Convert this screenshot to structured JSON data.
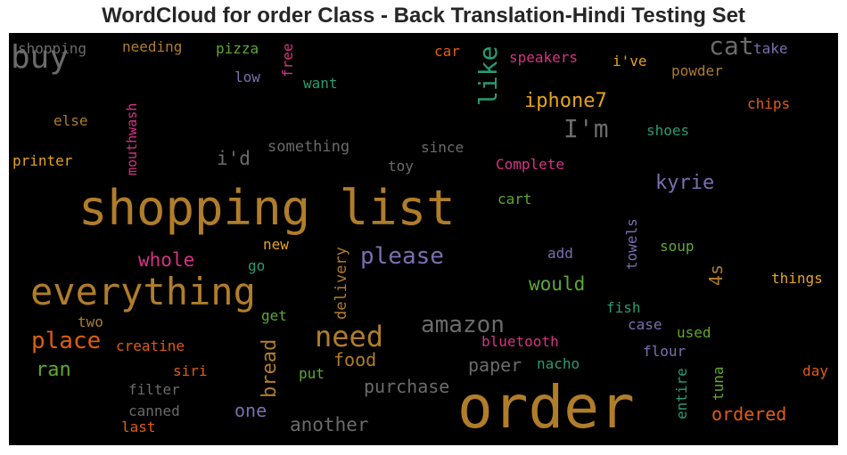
{
  "title": "WordCloud for order Class - Back Translation-Hindi Testing Set",
  "chart_data": {
    "type": "wordcloud",
    "background": "#000000",
    "palette": [
      "#b07d2a",
      "#6b6b6b",
      "#e05d10",
      "#d63384",
      "#5fa832",
      "#7b6fb0",
      "#2a9c72",
      "#e6a51a"
    ],
    "words": [
      {
        "text": "order",
        "color": "#b07d2a",
        "weight": 1.0
      },
      {
        "text": "shopping list",
        "color": "#b07d2a",
        "weight": 0.86
      },
      {
        "text": "everything",
        "color": "#b07d2a",
        "weight": 0.74
      },
      {
        "text": "buy",
        "color": "#6b6b6b",
        "weight": 0.6
      },
      {
        "text": "need",
        "color": "#b07d2a",
        "weight": 0.55
      },
      {
        "text": "place",
        "color": "#e05d10",
        "weight": 0.48
      },
      {
        "text": "like",
        "color": "#2a9c72",
        "weight": 0.46
      },
      {
        "text": "I'm",
        "color": "#6b6b6b",
        "weight": 0.44
      },
      {
        "text": "cat",
        "color": "#6b6b6b",
        "weight": 0.44
      },
      {
        "text": "amazon",
        "color": "#6b6b6b",
        "weight": 0.42
      },
      {
        "text": "please",
        "color": "#7b6fb0",
        "weight": 0.42
      },
      {
        "text": "iphone7",
        "color": "#e6a51a",
        "weight": 0.38
      },
      {
        "text": "ran",
        "color": "#5fa832",
        "weight": 0.36
      },
      {
        "text": "bread",
        "color": "#b07d2a",
        "weight": 0.36
      },
      {
        "text": "food",
        "color": "#b07d2a",
        "weight": 0.34
      },
      {
        "text": "kyrie",
        "color": "#7b6fb0",
        "weight": 0.32
      },
      {
        "text": "whole",
        "color": "#d63384",
        "weight": 0.32
      },
      {
        "text": "would",
        "color": "#5fa832",
        "weight": 0.32
      },
      {
        "text": "purchase",
        "color": "#6b6b6b",
        "weight": 0.32
      },
      {
        "text": "paper",
        "color": "#6b6b6b",
        "weight": 0.32
      },
      {
        "text": "another",
        "color": "#6b6b6b",
        "weight": 0.32
      },
      {
        "text": "4s",
        "color": "#b07d2a",
        "weight": 0.32
      },
      {
        "text": "ordered",
        "color": "#e05d10",
        "weight": 0.3
      },
      {
        "text": "i'd",
        "color": "#6b6b6b",
        "weight": 0.3
      },
      {
        "text": "one",
        "color": "#7b6fb0",
        "weight": 0.3
      },
      {
        "text": "delivery",
        "color": "#b07d2a",
        "weight": 0.26
      },
      {
        "text": "something",
        "color": "#6b6b6b",
        "weight": 0.26
      },
      {
        "text": "shopping",
        "color": "#6b6b6b",
        "weight": 0.24
      },
      {
        "text": "towels",
        "color": "#7b6fb0",
        "weight": 0.24
      },
      {
        "text": "mouthwash",
        "color": "#d63384",
        "weight": 0.24
      },
      {
        "text": "speakers",
        "color": "#d63384",
        "weight": 0.24
      },
      {
        "text": "needing",
        "color": "#b07d2a",
        "weight": 0.24
      },
      {
        "text": "Complete",
        "color": "#d63384",
        "weight": 0.22
      },
      {
        "text": "bluetooth",
        "color": "#d63384",
        "weight": 0.22
      },
      {
        "text": "creatine",
        "color": "#e05d10",
        "weight": 0.22
      },
      {
        "text": "chips",
        "color": "#e05d10",
        "weight": 0.22
      },
      {
        "text": "shoes",
        "color": "#2a9c72",
        "weight": 0.22
      },
      {
        "text": "things",
        "color": "#e6a51a",
        "weight": 0.22
      },
      {
        "text": "powder",
        "color": "#b07d2a",
        "weight": 0.22
      },
      {
        "text": "i've",
        "color": "#e6a51a",
        "weight": 0.22
      },
      {
        "text": "free",
        "color": "#d63384",
        "weight": 0.22
      },
      {
        "text": "pizza",
        "color": "#5fa832",
        "weight": 0.22
      },
      {
        "text": "take",
        "color": "#7b6fb0",
        "weight": 0.22
      },
      {
        "text": "car",
        "color": "#e05d10",
        "weight": 0.22
      },
      {
        "text": "since",
        "color": "#6b6b6b",
        "weight": 0.22
      },
      {
        "text": "toy",
        "color": "#6b6b6b",
        "weight": 0.22
      },
      {
        "text": "printer",
        "color": "#e6a51a",
        "weight": 0.22
      },
      {
        "text": "else",
        "color": "#b07d2a",
        "weight": 0.22
      },
      {
        "text": "want",
        "color": "#2a9c72",
        "weight": 0.22
      },
      {
        "text": "low",
        "color": "#7b6fb0",
        "weight": 0.22
      },
      {
        "text": "cart",
        "color": "#5fa832",
        "weight": 0.22
      },
      {
        "text": "soup",
        "color": "#5fa832",
        "weight": 0.22
      },
      {
        "text": "add",
        "color": "#7b6fb0",
        "weight": 0.22
      },
      {
        "text": "new",
        "color": "#e6a51a",
        "weight": 0.22
      },
      {
        "text": "go",
        "color": "#2a9c72",
        "weight": 0.22
      },
      {
        "text": "get",
        "color": "#5fa832",
        "weight": 0.22
      },
      {
        "text": "two",
        "color": "#b07d2a",
        "weight": 0.22
      },
      {
        "text": "fish",
        "color": "#2a9c72",
        "weight": 0.22
      },
      {
        "text": "case",
        "color": "#7b6fb0",
        "weight": 0.22
      },
      {
        "text": "used",
        "color": "#5fa832",
        "weight": 0.22
      },
      {
        "text": "flour",
        "color": "#7b6fb0",
        "weight": 0.22
      },
      {
        "text": "nacho",
        "color": "#2a9c72",
        "weight": 0.22
      },
      {
        "text": "entire",
        "color": "#2a9c72",
        "weight": 0.22
      },
      {
        "text": "tuna",
        "color": "#5fa832",
        "weight": 0.22
      },
      {
        "text": "day",
        "color": "#e05d10",
        "weight": 0.22
      },
      {
        "text": "siri",
        "color": "#e05d10",
        "weight": 0.22
      },
      {
        "text": "put",
        "color": "#5fa832",
        "weight": 0.22
      },
      {
        "text": "filter",
        "color": "#6b6b6b",
        "weight": 0.22
      },
      {
        "text": "canned",
        "color": "#6b6b6b",
        "weight": 0.22
      },
      {
        "text": "last",
        "color": "#e05d10",
        "weight": 0.22
      }
    ]
  }
}
